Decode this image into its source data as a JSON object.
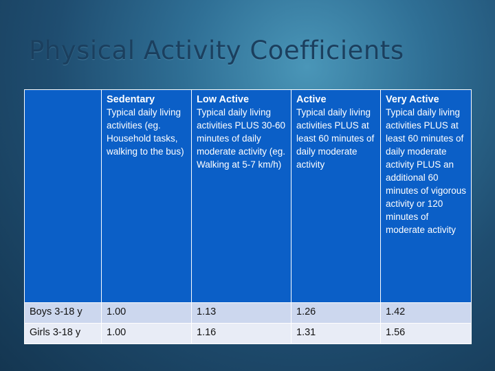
{
  "slide": {
    "title": "Physical Activity Coefficients"
  },
  "table": {
    "corner": "",
    "columns": [
      {
        "title": "Sedentary",
        "description": "Typical daily living activities (eg. Household tasks, walking to the bus)"
      },
      {
        "title": "Low Active",
        "description": "Typical daily living activities PLUS 30-60 minutes of daily moderate activity (eg. Walking at 5-7 km/h)"
      },
      {
        "title": "Active",
        "description": "Typical daily living activities PLUS at least 60 minutes of daily moderate activity"
      },
      {
        "title": "Very Active",
        "description": "Typical daily living activities PLUS at least 60 minutes of daily moderate activity PLUS an additional 60 minutes of vigorous activity or 120 minutes of moderate activity"
      }
    ],
    "rows": [
      {
        "label": "Boys 3-18 y",
        "values": [
          "1.00",
          "1.13",
          "1.26",
          "1.42"
        ]
      },
      {
        "label": "Girls 3-18 y",
        "values": [
          "1.00",
          "1.16",
          "1.31",
          "1.56"
        ]
      }
    ]
  },
  "colors": {
    "header_fill": "#0b5fc7",
    "row_odd_fill": "#ccd7ee",
    "row_even_fill": "#e8ecf6",
    "title_text": "#1b3f5e"
  }
}
